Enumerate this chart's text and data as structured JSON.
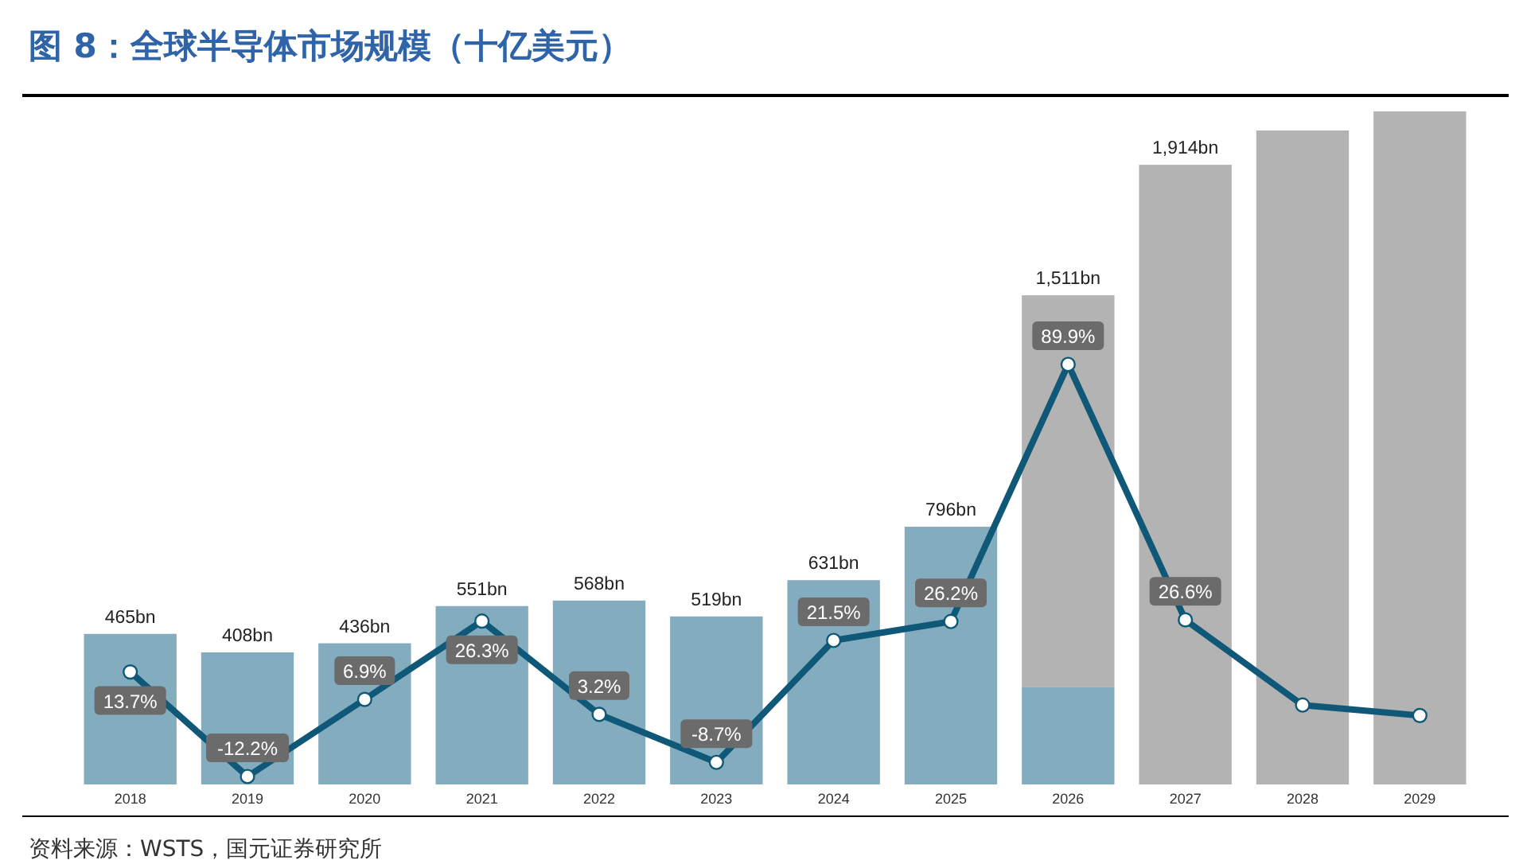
{
  "chart_data": {
    "type": "bar",
    "title": "图 8：全球半导体市场规模（十亿美元）",
    "categories": [
      "2018",
      "2019",
      "2020",
      "2021",
      "2022",
      "2023",
      "2024",
      "2025",
      "2026",
      "2027",
      "2028",
      "2029"
    ],
    "stacked": true,
    "series": [
      {
        "color": "#84acbf",
        "values": [
          465,
          408,
          436,
          551,
          568,
          519,
          631,
          796,
          300,
          null,
          null,
          null
        ],
        "value_labels": [
          "465bn",
          "408bn",
          "436bn",
          "551bn",
          "568bn",
          "519bn",
          "631bn",
          "796bn",
          null,
          null,
          null,
          null
        ]
      },
      {
        "color": "#b3b3b3",
        "values": [
          null,
          null,
          null,
          null,
          null,
          null,
          null,
          null,
          1211,
          1914,
          2020,
          2079
        ],
        "value_labels": [
          null,
          null,
          null,
          null,
          null,
          null,
          null,
          null,
          null,
          "1,914bn",
          null,
          null
        ]
      },
      {
        "type": "line",
        "axis": "y2",
        "color": "#0f5878",
        "values": [
          13.7,
          -12.2,
          6.9,
          26.3,
          3.2,
          -8.7,
          21.5,
          26.2,
          89.9,
          26.6,
          5.5,
          2.9
        ],
        "value_labels": [
          "13.7%",
          "-12.2%",
          "6.9%",
          "26.3%",
          "3.2%",
          "-8.7%",
          "21.5%",
          "26.2%",
          "89.9%",
          "26.6%",
          null,
          null
        ]
      }
    ],
    "totals": [
      null,
      null,
      null,
      null,
      null,
      null,
      null,
      null,
      "1,511bn",
      null,
      null,
      null
    ],
    "marker": "circle",
    "annotations": [
      "资料来源：WSTS，国元证券研究所"
    ]
  }
}
